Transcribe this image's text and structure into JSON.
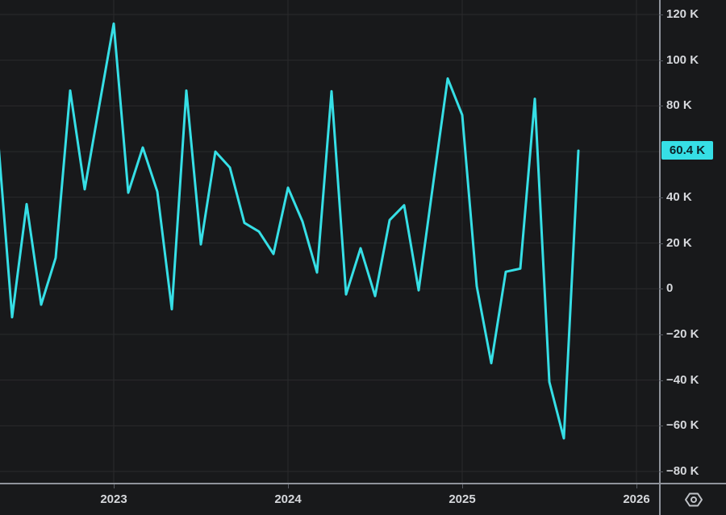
{
  "chart_data": {
    "type": "line",
    "description": "Monthly change line chart (values in thousands), cyan line on dark background",
    "unit": "K",
    "x": [
      "May 2022",
      "Jun 2022",
      "Jul 2022",
      "Aug 2022",
      "Sep 2022",
      "Oct 2022",
      "Nov 2022",
      "Dec 2022",
      "Jan 2023",
      "Feb 2023",
      "Mar 2023",
      "Apr 2023",
      "May 2023",
      "Jun 2023",
      "Jul 2023",
      "Aug 2023",
      "Sep 2023",
      "Oct 2023",
      "Nov 2023",
      "Dec 2023",
      "Jan 2024",
      "Feb 2024",
      "Mar 2024",
      "Apr 2024",
      "May 2024",
      "Jun 2024",
      "Jul 2024",
      "Aug 2024",
      "Sep 2024",
      "Oct 2024",
      "Nov 2024",
      "Dec 2024",
      "Jan 2025",
      "Feb 2025",
      "Mar 2025",
      "Apr 2025",
      "May 2025",
      "Jun 2025",
      "Jul 2025",
      "Aug 2025",
      "Sep 2025"
    ],
    "values": [
      68,
      -12.5,
      37,
      -7,
      13.5,
      86.7,
      43.5,
      80,
      116,
      42,
      61.8,
      42.5,
      -9,
      86.7,
      19.4,
      60,
      53,
      28.8,
      25,
      15.2,
      44.2,
      29.4,
      7.1,
      86.4,
      -2.5,
      17.7,
      -3.2,
      30,
      36.5,
      -0.7,
      46,
      92,
      76,
      1.1,
      -32.6,
      7.4,
      8.8,
      83.1,
      -40.8,
      -65.5,
      60.4
    ],
    "last_value": 60.4,
    "ylim": [
      -80,
      120
    ],
    "y_tick_step": 20,
    "grid": true,
    "legend_position": "none"
  },
  "price_axis": {
    "ticks": [
      {
        "value": 120,
        "label": "120 K"
      },
      {
        "value": 100,
        "label": "100 K"
      },
      {
        "value": 80,
        "label": "80 K"
      },
      {
        "value": 40,
        "label": "40 K"
      },
      {
        "value": 20,
        "label": "20 K"
      },
      {
        "value": 0,
        "label": "0"
      },
      {
        "value": -20,
        "label": "−20 K"
      },
      {
        "value": -40,
        "label": "−40 K"
      },
      {
        "value": -60,
        "label": "−60 K"
      },
      {
        "value": -80,
        "label": "−80 K"
      }
    ],
    "last_price_badge": "60.4 K"
  },
  "time_axis": {
    "years": [
      {
        "label": "2023"
      },
      {
        "label": "2024"
      },
      {
        "label": "2025"
      },
      {
        "label": "2026"
      }
    ]
  },
  "icons": {
    "settings": "hexagon-gear-icon"
  },
  "colors": {
    "background": "#18191b",
    "grid": "#2a2b2d",
    "accent": "#36dfe6",
    "axis_text": "#d6d8dc",
    "separator": "#8f939b",
    "badge_text": "#0c2329",
    "icon": "#bfc2c7"
  }
}
